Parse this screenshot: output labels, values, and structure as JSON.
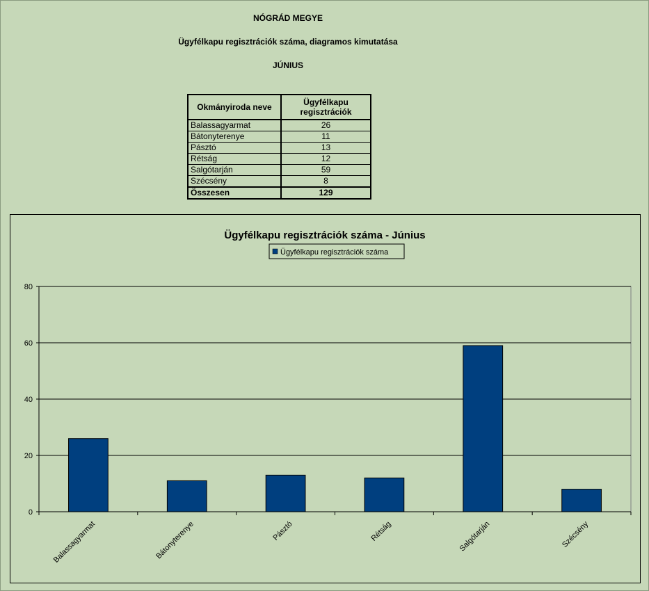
{
  "header": {
    "county": "NÓGRÁD MEGYE",
    "subtitle": "Ügyfélkapu regisztrációk száma, diagramos kimutatása",
    "month": "JÚNIUS"
  },
  "table": {
    "col1_header": "Okmányiroda neve",
    "col2_header_line1": "Ügyfélkapu",
    "col2_header_line2": "regisztrációk",
    "rows": [
      {
        "name": "Balassagyarmat",
        "value": "26"
      },
      {
        "name": "Bátonyterenye",
        "value": "11"
      },
      {
        "name": "Pásztó",
        "value": "13"
      },
      {
        "name": "Rétság",
        "value": "12"
      },
      {
        "name": "Salgótarján",
        "value": "59"
      },
      {
        "name": "Szécsény",
        "value": "8"
      }
    ],
    "total_label": "Összesen",
    "total_value": "129"
  },
  "colors": {
    "background": "#c6d8b8",
    "bar": "#003f7f"
  },
  "chart_data": {
    "type": "bar",
    "title": "Ügyfélkapu regisztrációk száma - Június",
    "categories": [
      "Balassagyarmat",
      "Bátonyterenye",
      "Pásztó",
      "Rétság",
      "Salgótarján",
      "Szécsény"
    ],
    "series": [
      {
        "name": "Ügyfélkapu regisztrációk száma",
        "values": [
          26,
          11,
          13,
          12,
          59,
          8
        ]
      }
    ],
    "ylim": [
      0,
      80
    ],
    "yticks": [
      0,
      20,
      40,
      60,
      80
    ],
    "yticks_labels": [
      "0",
      "20",
      "40",
      "60",
      "80"
    ],
    "grid": true,
    "legend": "top-center",
    "xlabel": "",
    "ylabel": ""
  }
}
